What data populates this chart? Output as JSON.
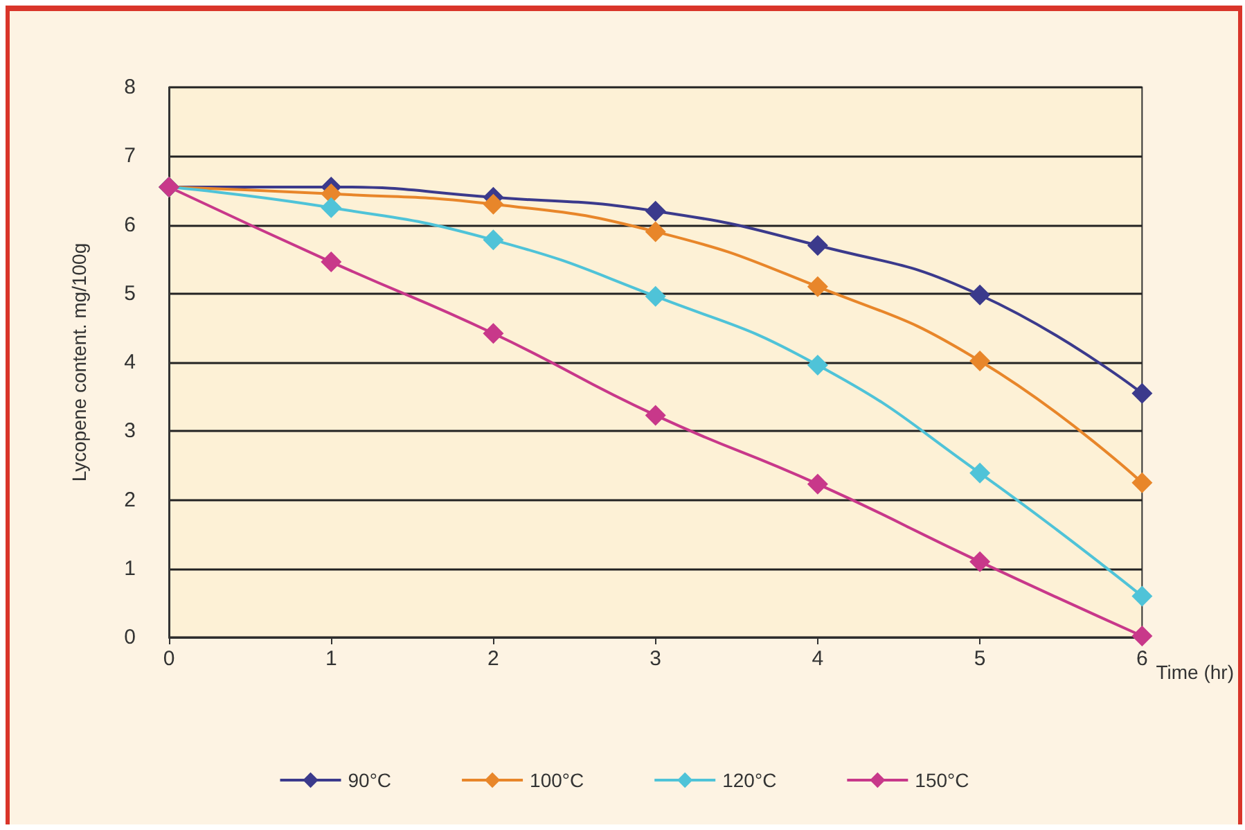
{
  "chart_data": {
    "type": "line",
    "xlabel": "Time (hr)",
    "ylabel": "Lycopene content. mg/100g",
    "x": [
      0,
      1,
      2,
      3,
      4,
      5,
      6
    ],
    "series": [
      {
        "name": "90°C",
        "color": "#3b3a8c",
        "values": [
          6.55,
          6.55,
          6.4,
          6.2,
          5.7,
          4.98,
          3.55
        ]
      },
      {
        "name": "100°C",
        "color": "#e8862a",
        "values": [
          6.55,
          6.45,
          6.3,
          5.9,
          5.1,
          4.02,
          2.25
        ]
      },
      {
        "name": "120°C",
        "color": "#4fc3d8",
        "values": [
          6.55,
          6.25,
          5.78,
          4.96,
          3.96,
          2.39,
          0.6
        ]
      },
      {
        "name": "150°C",
        "color": "#c8388a",
        "values": [
          6.55,
          5.46,
          4.42,
          3.23,
          2.23,
          1.1,
          0.02
        ]
      }
    ],
    "xlim": [
      0,
      6
    ],
    "xticks": [
      0,
      1,
      2,
      3,
      4,
      5,
      6
    ],
    "ylim": [
      0,
      8
    ],
    "yticks": [
      0,
      1,
      2,
      3,
      4,
      5,
      6,
      7,
      8
    ],
    "grid": "y",
    "legend": "bottom",
    "marker": "diamond",
    "line_style": "solid"
  }
}
